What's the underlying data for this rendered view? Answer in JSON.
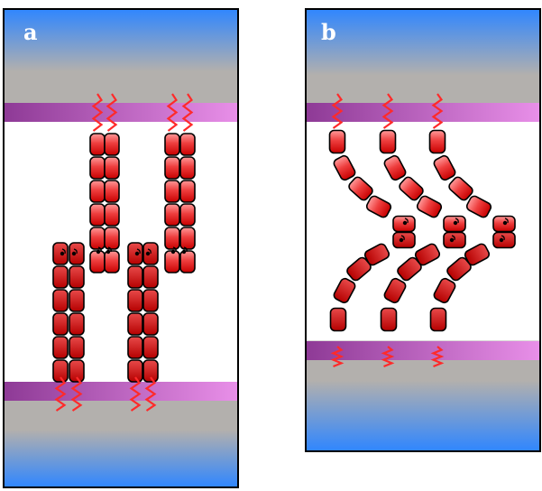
{
  "panels": [
    {
      "id": "a",
      "label": "a"
    },
    {
      "id": "b",
      "label": "b"
    }
  ],
  "colors": {
    "background": "#ffffff",
    "panel_border": "#000000",
    "blue": "#2f86ff",
    "grey_band": "#b3b0ad",
    "membrane_purple": "#8e3a96",
    "membrane_pink": "#e88fe8",
    "domain_light": "#ff9a9a",
    "domain_mid": "#ee3e3e",
    "domain_dark": "#c80000",
    "linker": "#ff2a2a"
  }
}
